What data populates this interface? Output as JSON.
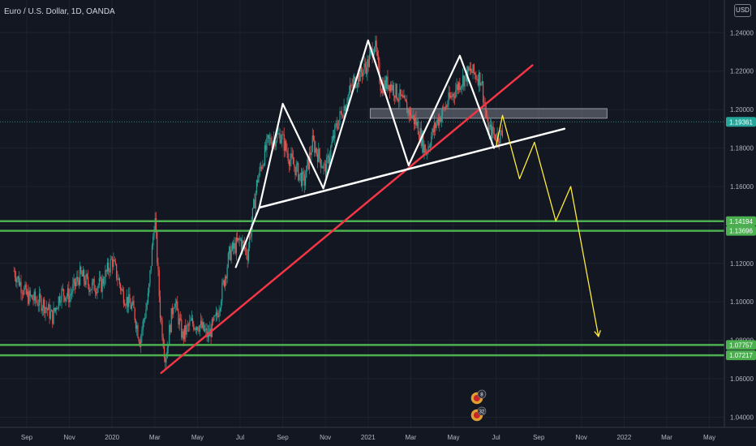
{
  "chart_title": "Euro / U.S. Dollar, 1D, OANDA",
  "currency_badge": "USD",
  "colors": {
    "background": "#131722",
    "grid": "#1e222d",
    "candle_up": "#26a69a",
    "candle_down": "#ef5350",
    "support_line": "#4caf50",
    "price_label_bg": "#4caf50",
    "current_price_label_bg": "#26a69a",
    "trendline": "#f23645",
    "pattern_line": "#ffffff",
    "projection": "#ffeb3b",
    "resistance_zone": "#787b86"
  },
  "chart_data": {
    "type": "candlestick",
    "title": "Euro / U.S. Dollar, 1D, OANDA",
    "ylabel": "USD",
    "ylim": [
      1.025,
      1.257
    ],
    "y_ticks": [
      "1.04000",
      "1.06000",
      "1.08000",
      "1.10000",
      "1.12000",
      "1.14000",
      "1.16000",
      "1.18000",
      "1.20000",
      "1.22000",
      "1.24000"
    ],
    "x_ticks": [
      "Sep",
      "Nov",
      "2020",
      "Mar",
      "May",
      "Jul",
      "Sep",
      "Nov",
      "2021",
      "Mar",
      "May",
      "Jul",
      "Sep",
      "Nov",
      "2022",
      "Mar",
      "May"
    ],
    "x_tick_months": [
      0,
      2,
      4,
      6,
      8,
      10,
      12,
      14,
      16,
      18,
      20,
      22,
      24,
      26,
      28,
      30,
      32
    ],
    "price_path": [
      [
        -0.6,
        1.116
      ],
      [
        0.0,
        1.103
      ],
      [
        0.8,
        1.099
      ],
      [
        1.2,
        1.092
      ],
      [
        1.6,
        1.105
      ],
      [
        2.0,
        1.103
      ],
      [
        2.5,
        1.114
      ],
      [
        3.0,
        1.108
      ],
      [
        3.5,
        1.109
      ],
      [
        4.0,
        1.122
      ],
      [
        4.5,
        1.104
      ],
      [
        5.0,
        1.096
      ],
      [
        5.3,
        1.08
      ],
      [
        5.7,
        1.103
      ],
      [
        6.0,
        1.145
      ],
      [
        6.25,
        1.095
      ],
      [
        6.5,
        1.07
      ],
      [
        6.9,
        1.102
      ],
      [
        7.3,
        1.082
      ],
      [
        7.7,
        1.089
      ],
      [
        8.1,
        1.088
      ],
      [
        8.5,
        1.082
      ],
      [
        8.9,
        1.092
      ],
      [
        9.5,
        1.125
      ],
      [
        10.0,
        1.132
      ],
      [
        10.35,
        1.125
      ],
      [
        10.8,
        1.163
      ],
      [
        11.3,
        1.183
      ],
      [
        11.9,
        1.187
      ],
      [
        12.3,
        1.175
      ],
      [
        13.0,
        1.162
      ],
      [
        13.4,
        1.183
      ],
      [
        14.0,
        1.168
      ],
      [
        14.5,
        1.191
      ],
      [
        15.3,
        1.214
      ],
      [
        16.0,
        1.224
      ],
      [
        16.3,
        1.235
      ],
      [
        16.6,
        1.212
      ],
      [
        17.0,
        1.214
      ],
      [
        17.8,
        1.201
      ],
      [
        18.3,
        1.192
      ],
      [
        18.7,
        1.178
      ],
      [
        19.2,
        1.193
      ],
      [
        19.8,
        1.205
      ],
      [
        20.3,
        1.214
      ],
      [
        20.8,
        1.22
      ],
      [
        21.3,
        1.216
      ],
      [
        21.6,
        1.19
      ],
      [
        22.0,
        1.186
      ],
      [
        22.3,
        1.187
      ]
    ],
    "support_levels": [
      1.14194,
      1.13696,
      1.07757,
      1.07217
    ],
    "current_price": 1.19361,
    "resistance_zone": [
      1.1955,
      1.2005
    ],
    "trendline": [
      [
        6.3,
        1.063
      ],
      [
        23.7,
        1.223
      ]
    ],
    "neckline": [
      [
        10.9,
        1.149
      ],
      [
        25.2,
        1.19
      ]
    ],
    "pattern_path": [
      [
        9.8,
        1.118
      ],
      [
        10.9,
        1.149
      ],
      [
        12.0,
        1.203
      ],
      [
        13.9,
        1.159
      ],
      [
        16.0,
        1.236
      ],
      [
        17.9,
        1.171
      ],
      [
        20.3,
        1.228
      ],
      [
        21.9,
        1.18
      ]
    ],
    "projection_path": [
      [
        22.0,
        1.181
      ],
      [
        22.3,
        1.197
      ],
      [
        23.1,
        1.164
      ],
      [
        23.8,
        1.183
      ],
      [
        24.8,
        1.142
      ],
      [
        25.5,
        1.16
      ],
      [
        26.8,
        1.082
      ]
    ],
    "event_badges": [
      "8",
      "32"
    ],
    "event_badge_month": 21.1
  }
}
